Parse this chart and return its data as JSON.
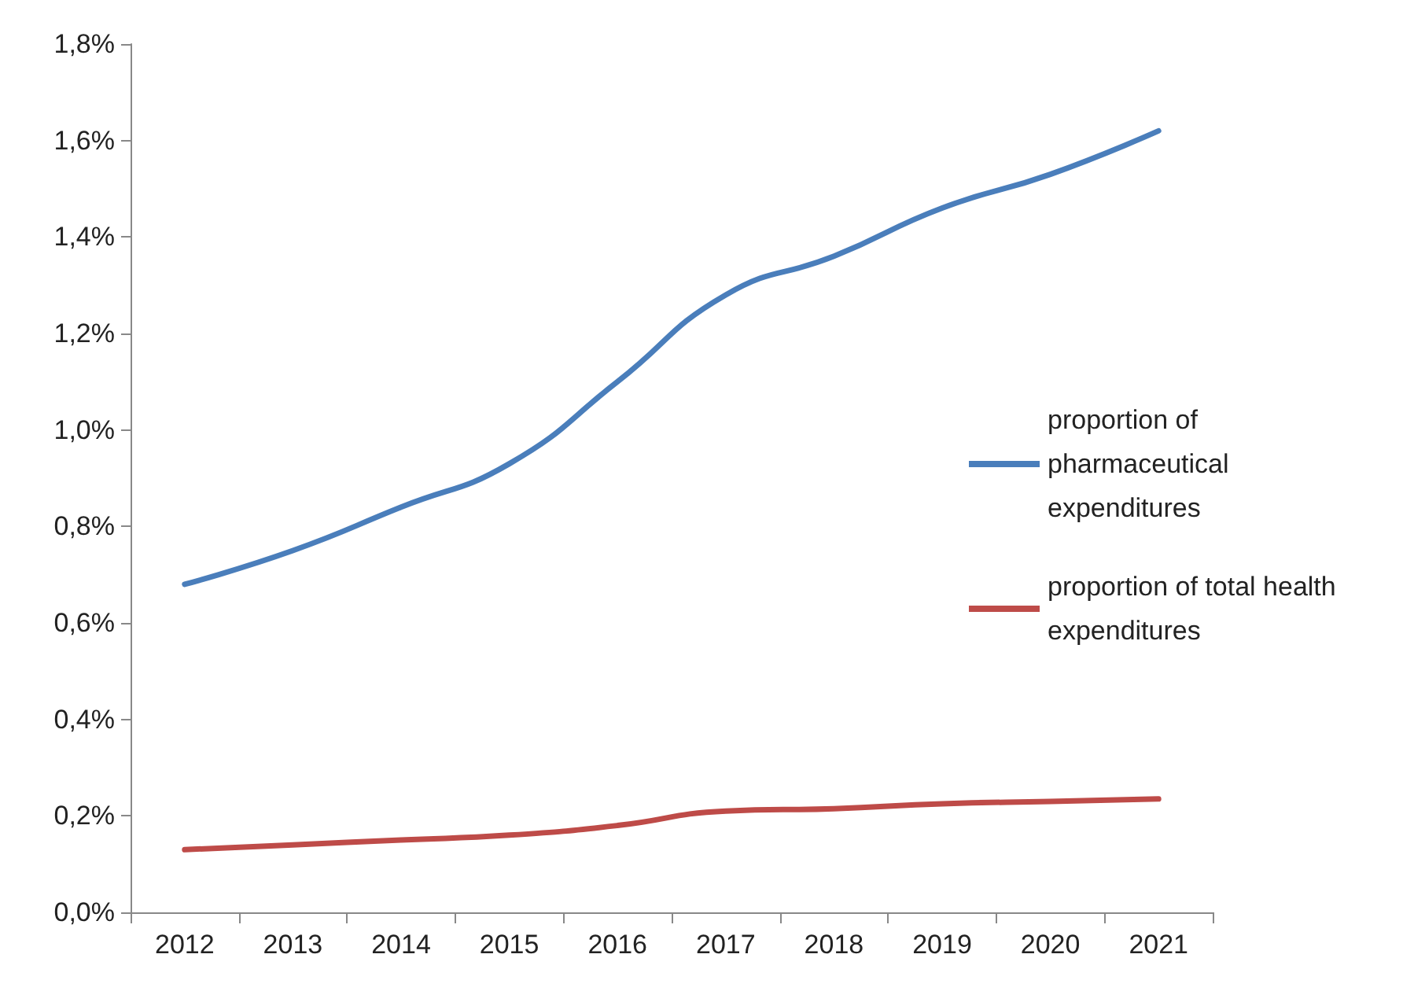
{
  "chart_data": {
    "type": "line",
    "categories": [
      "2012",
      "2013",
      "2014",
      "2015",
      "2016",
      "2017",
      "2018",
      "2019",
      "2020",
      "2021"
    ],
    "series": [
      {
        "name": "proportion of pharmaceutical expenditures",
        "color": "#4a7ebb",
        "values": [
          0.68,
          0.75,
          0.84,
          0.93,
          1.1,
          1.28,
          1.36,
          1.46,
          1.53,
          1.62
        ]
      },
      {
        "name": "proportion of total health expenditures",
        "color": "#be4b48",
        "values": [
          0.13,
          0.14,
          0.15,
          0.16,
          0.18,
          0.21,
          0.215,
          0.225,
          0.23,
          0.235
        ]
      }
    ],
    "ylim": [
      0,
      1.8
    ],
    "yticks": [
      {
        "value": 0,
        "label": "0,0%"
      },
      {
        "value": 0.2,
        "label": "0,2%"
      },
      {
        "value": 0.4,
        "label": "0,4%"
      },
      {
        "value": 0.6,
        "label": "0,6%"
      },
      {
        "value": 0.8,
        "label": "0,8%"
      },
      {
        "value": 1,
        "label": "1,0%"
      },
      {
        "value": 1.2,
        "label": "1,2%"
      },
      {
        "value": 1.4,
        "label": "1,4%"
      },
      {
        "value": 1.6,
        "label": "1,6%"
      },
      {
        "value": 1.8,
        "label": "1,8%"
      }
    ],
    "grid": false,
    "legend": "right",
    "marker": "none",
    "line_style": "solid"
  }
}
